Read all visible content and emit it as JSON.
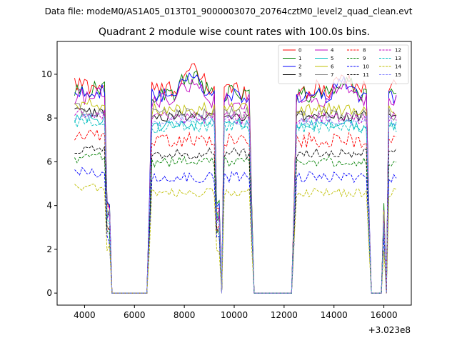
{
  "header": {
    "suptitle": "Data file: modeM0/AS1A05_013T01_9000003070_20764cztM0_level2_quad_clean.evt",
    "title": "Quadrant 2 module wise count rates with 100.0s bins."
  },
  "chart_data": {
    "type": "line",
    "title": "Quadrant 2 module wise count rates with 100.0s bins.",
    "xlabel": "",
    "ylabel": "",
    "x_offset_label": "+3.023e8",
    "xlim": [
      2900,
      17100
    ],
    "ylim": [
      -0.55,
      11.5
    ],
    "xticks": [
      4000,
      6000,
      8000,
      10000,
      12000,
      14000,
      16000
    ],
    "yticks": [
      0,
      2,
      4,
      6,
      8,
      10
    ],
    "grid": false,
    "legend": {
      "placement": "top-right",
      "columns": 4
    },
    "segments": [
      {
        "range": [
          3600,
          4800
        ],
        "edge": [
          4900,
          5000
        ]
      },
      {
        "range": [
          6700,
          9200
        ],
        "edge": [
          6600,
          9300
        ]
      },
      {
        "range": [
          9600,
          9600
        ],
        "edge": [
          9400,
          9700
        ]
      },
      {
        "range": [
          9700,
          10400
        ],
        "edge": [
          9700,
          10500
        ]
      },
      {
        "range": [
          10500,
          10600
        ],
        "edge": [
          10500,
          10700
        ]
      },
      {
        "range": [
          12500,
          15300
        ],
        "edge": [
          12400,
          15400
        ]
      },
      {
        "range": [
          16200,
          16500
        ],
        "edge": [
          16000,
          16600
        ]
      }
    ],
    "series": [
      {
        "name": "0",
        "color": "#ff0000",
        "dash": "solid",
        "level": 9.3,
        "amp": 0.45,
        "pattern": "peak"
      },
      {
        "name": "1",
        "color": "#008000",
        "dash": "solid",
        "level": 9.1,
        "amp": 0.4,
        "pattern": "peak"
      },
      {
        "name": "2",
        "color": "#0000ff",
        "dash": "solid",
        "level": 9.0,
        "amp": 0.35,
        "pattern": "peak"
      },
      {
        "name": "3",
        "color": "#000000",
        "dash": "solid",
        "level": 8.1,
        "amp": 0.25,
        "pattern": "flat"
      },
      {
        "name": "4",
        "color": "#bf00bf",
        "dash": "solid",
        "level": 8.8,
        "amp": 0.4,
        "pattern": "peak"
      },
      {
        "name": "5",
        "color": "#00bfbf",
        "dash": "solid",
        "level": 7.7,
        "amp": 0.3,
        "pattern": "flat"
      },
      {
        "name": "6",
        "color": "#bfbf00",
        "dash": "solid",
        "level": 8.4,
        "amp": 0.3,
        "pattern": "flat"
      },
      {
        "name": "7",
        "color": "#808080",
        "dash": "solid",
        "level": 8.2,
        "amp": 0.3,
        "pattern": "flat"
      },
      {
        "name": "8",
        "color": "#ff0000",
        "dash": "dashed",
        "level": 7.0,
        "amp": 0.35,
        "pattern": "flat"
      },
      {
        "name": "9",
        "color": "#008000",
        "dash": "dashed",
        "level": 6.0,
        "amp": 0.25,
        "pattern": "flat"
      },
      {
        "name": "10",
        "color": "#0000ff",
        "dash": "dashed",
        "level": 5.3,
        "amp": 0.25,
        "pattern": "flat"
      },
      {
        "name": "11",
        "color": "#000000",
        "dash": "dashed",
        "level": 6.4,
        "amp": 0.25,
        "pattern": "flat"
      },
      {
        "name": "12",
        "color": "#bf00bf",
        "dash": "dashed",
        "level": 8.0,
        "amp": 0.3,
        "pattern": "flat"
      },
      {
        "name": "13",
        "color": "#00bfbf",
        "dash": "dashed",
        "level": 7.6,
        "amp": 0.3,
        "pattern": "flat"
      },
      {
        "name": "14",
        "color": "#bfbf00",
        "dash": "dashed",
        "level": 4.6,
        "amp": 0.2,
        "pattern": "flat"
      },
      {
        "name": "15",
        "color": "#8080ff",
        "dash": "dashed",
        "level": 7.9,
        "amp": 0.25,
        "pattern": "flat"
      }
    ]
  }
}
